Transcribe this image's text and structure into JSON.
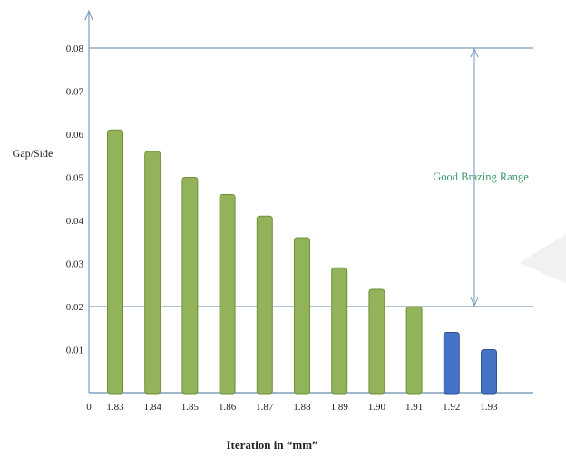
{
  "chart_data": {
    "type": "bar",
    "title": "",
    "xlabel": "Iteration in “mm”",
    "ylabel": "Gap/Side",
    "x_origin_label": "0",
    "categories": [
      "1.83",
      "1.84",
      "1.85",
      "1.86",
      "1.87",
      "1.88",
      "1.89",
      "1.90",
      "1.91",
      "1.92",
      "1.93"
    ],
    "values": [
      0.061,
      0.056,
      0.05,
      0.046,
      0.041,
      0.036,
      0.029,
      0.024,
      0.02,
      0.014,
      0.01
    ],
    "bar_colors": [
      "#92b35a",
      "#92b35a",
      "#92b35a",
      "#92b35a",
      "#92b35a",
      "#92b35a",
      "#92b35a",
      "#92b35a",
      "#92b35a",
      "#4472c4",
      "#4472c4"
    ],
    "yticks": [
      "0.01",
      "0.02",
      "0.03",
      "0.04",
      "0.05",
      "0.06",
      "0.07",
      "0.08"
    ],
    "ylim": [
      0,
      0.08
    ],
    "grid": false,
    "legend": "none",
    "reference_lines": [
      0.02,
      0.08
    ],
    "annotation": {
      "text": "Good Brazing Range",
      "range": [
        0.02,
        0.08
      ],
      "color": "#3a9a6a"
    },
    "colors": {
      "green_bar": "#92b35a",
      "green_bar_edge": "#6f8f3a",
      "blue_bar": "#4472c4",
      "blue_bar_edge": "#2f528f",
      "axis_line": "#7f9fbf"
    }
  }
}
